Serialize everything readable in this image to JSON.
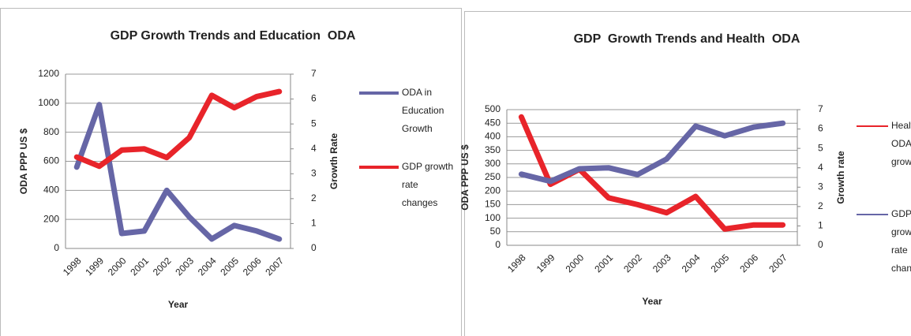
{
  "chart_data": [
    {
      "type": "line",
      "title": "GDP Growth Trends and Education  ODA",
      "x_label": "Year",
      "y_label": "ODA PPP US $",
      "y2_label": "Growth Rate",
      "categories": [
        "1998",
        "1999",
        "2000",
        "2001",
        "2002",
        "2003",
        "2004",
        "2005",
        "2006",
        "2007"
      ],
      "series": [
        {
          "name": "ODA in Education Growth",
          "color": "#6666a6",
          "values": [
            560,
            990,
            103,
            120,
            400,
            217,
            65,
            158,
            120,
            65
          ]
        },
        {
          "name": "GDP growth rate changes",
          "color": "#e8242a",
          "axis": "y2",
          "values": [
            3.67,
            3.3,
            3.95,
            4.0,
            3.65,
            4.45,
            6.15,
            5.65,
            6.1,
            6.3
          ]
        }
      ],
      "ylim": [
        0,
        1200
      ],
      "yticks": [
        0,
        200,
        400,
        600,
        800,
        1000,
        1200
      ],
      "y2lim": [
        0,
        7
      ],
      "y2ticks": [
        0,
        1,
        2,
        3,
        4,
        5,
        6,
        7
      ],
      "grid": true,
      "legend": "right"
    },
    {
      "type": "line",
      "title": "GDP  Growth Trends and Health  ODA",
      "x_label": "Year",
      "y_label": "ODA PPP US $",
      "y2_label": "Growth rate",
      "categories": [
        "1998",
        "1999",
        "2000",
        "2001",
        "2002",
        "2003",
        "2004",
        "2005",
        "2006",
        "2007"
      ],
      "series": [
        {
          "name": "Health ODA growth",
          "color": "#e8242a",
          "values": [
            473,
            225,
            280,
            175,
            150,
            120,
            180,
            60,
            75,
            75
          ]
        },
        {
          "name": "GDP growth rate change",
          "color": "#6666a6",
          "axis": "y2",
          "values": [
            3.67,
            3.3,
            3.95,
            4.0,
            3.65,
            4.45,
            6.15,
            5.65,
            6.1,
            6.3
          ]
        }
      ],
      "ylim": [
        0,
        500
      ],
      "yticks": [
        0,
        50,
        100,
        150,
        200,
        250,
        300,
        350,
        400,
        450,
        500
      ],
      "y2lim": [
        0,
        7
      ],
      "y2ticks": [
        0,
        1,
        2,
        3,
        4,
        5,
        6,
        7
      ],
      "grid": true,
      "legend": "right"
    }
  ]
}
